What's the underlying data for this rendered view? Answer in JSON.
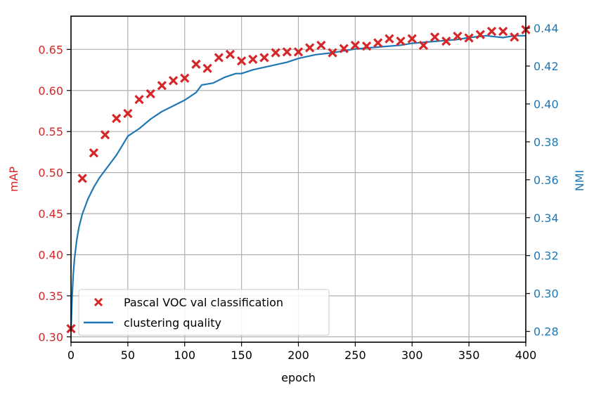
{
  "chart_data": {
    "type": "scatter+line",
    "title": "",
    "xlabel": "epoch",
    "ylabel_left": "mAP",
    "ylabel_right": "NMI",
    "xlim": [
      0,
      400
    ],
    "ylim_left": [
      0.2935,
      0.6905
    ],
    "ylim_right": [
      0.2743,
      0.4463
    ],
    "x_ticks": [
      0,
      50,
      100,
      150,
      200,
      250,
      300,
      350,
      400
    ],
    "y_ticks_left": [
      "0.30",
      "0.35",
      "0.40",
      "0.45",
      "0.50",
      "0.55",
      "0.60",
      "0.65"
    ],
    "y_ticks_right": [
      "0.28",
      "0.30",
      "0.32",
      "0.34",
      "0.36",
      "0.38",
      "0.40",
      "0.42",
      "0.44"
    ],
    "grid": true,
    "legend_position": "lower-left",
    "colors": {
      "left_axis": "#d62728",
      "right_axis": "#1f77b4",
      "grid": "#b0b0b0"
    },
    "series": [
      {
        "name": "Pascal VOC val classification",
        "axis": "left",
        "marker": "x",
        "color": "#d62728",
        "x": [
          0,
          10,
          20,
          30,
          40,
          50,
          60,
          70,
          80,
          90,
          100,
          110,
          120,
          130,
          140,
          150,
          160,
          170,
          180,
          190,
          200,
          210,
          220,
          230,
          240,
          250,
          260,
          270,
          280,
          290,
          300,
          310,
          320,
          330,
          340,
          350,
          360,
          370,
          380,
          390,
          400
        ],
        "values": [
          0.31,
          0.493,
          0.524,
          0.546,
          0.566,
          0.572,
          0.589,
          0.596,
          0.606,
          0.612,
          0.615,
          0.632,
          0.627,
          0.64,
          0.644,
          0.636,
          0.638,
          0.64,
          0.646,
          0.647,
          0.647,
          0.652,
          0.655,
          0.646,
          0.651,
          0.655,
          0.654,
          0.658,
          0.663,
          0.66,
          0.663,
          0.655,
          0.665,
          0.66,
          0.666,
          0.664,
          0.668,
          0.672,
          0.672,
          0.665,
          0.674
        ]
      },
      {
        "name": "clustering quality",
        "axis": "right",
        "marker": "line",
        "color": "#1f77b4",
        "x": [
          0,
          1,
          2,
          3,
          5,
          7,
          10,
          15,
          20,
          25,
          30,
          35,
          40,
          45,
          50,
          60,
          70,
          75,
          80,
          90,
          100,
          110,
          115,
          125,
          135,
          145,
          150,
          160,
          175,
          190,
          200,
          215,
          230,
          250,
          270,
          290,
          300,
          320,
          340,
          350,
          365,
          380,
          390,
          400
        ],
        "values": [
          0.28,
          0.298,
          0.31,
          0.318,
          0.328,
          0.335,
          0.342,
          0.35,
          0.356,
          0.361,
          0.365,
          0.369,
          0.373,
          0.378,
          0.383,
          0.387,
          0.392,
          0.394,
          0.396,
          0.399,
          0.402,
          0.406,
          0.41,
          0.411,
          0.414,
          0.416,
          0.416,
          0.418,
          0.42,
          0.422,
          0.424,
          0.426,
          0.427,
          0.429,
          0.43,
          0.431,
          0.432,
          0.433,
          0.434,
          0.435,
          0.436,
          0.435,
          0.436,
          0.436
        ]
      }
    ]
  }
}
